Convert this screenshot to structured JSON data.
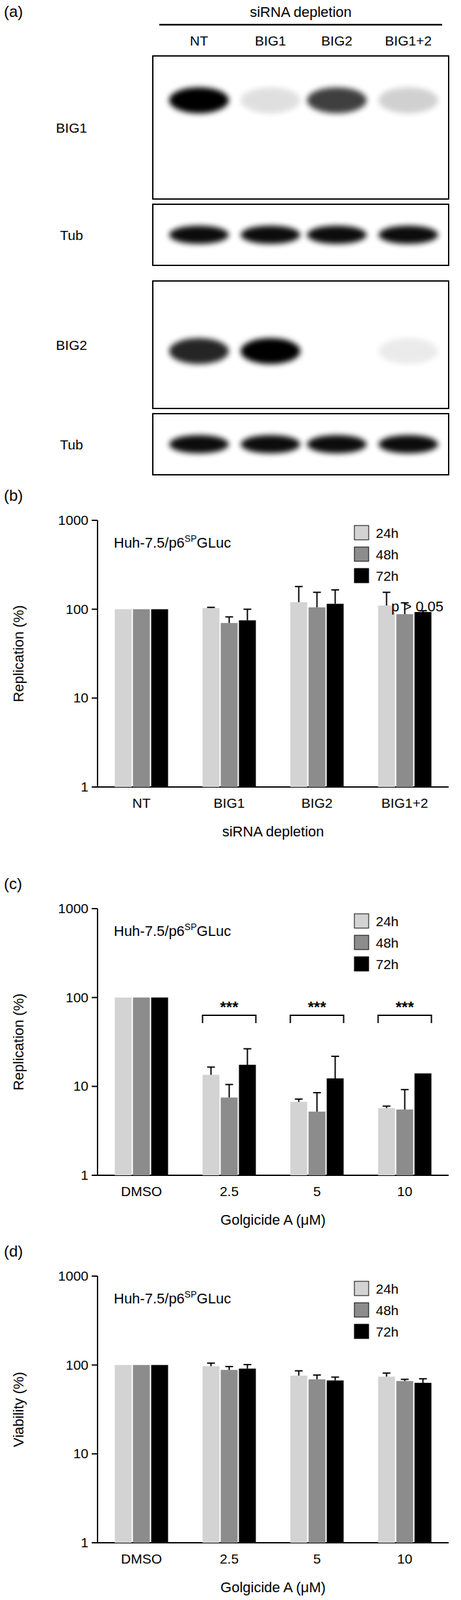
{
  "blot": {
    "panel": "(a)",
    "header": "siRNA depletion",
    "lanes": [
      "NT",
      "BIG1",
      "BIG2",
      "BIG1+2"
    ],
    "rows": [
      "BIG1",
      "Tub",
      "BIG2",
      "Tub"
    ]
  },
  "chart_data": [
    {
      "type": "bar",
      "panel": "(b)",
      "title_parts": [
        "Huh-7.5/p6",
        "SP",
        "GLuc"
      ],
      "annotation": "p > 0.05",
      "xlabel": "siRNA depletion",
      "ylabel": "Replication (%)",
      "categories": [
        "NT",
        "BIG1",
        "BIG2",
        "BIG1+2"
      ],
      "series": [
        {
          "name": "24h",
          "color": "#d3d3d3",
          "values": [
            100,
            103,
            120,
            110
          ],
          "errors": [
            0,
            2,
            60,
            45
          ]
        },
        {
          "name": "48h",
          "color": "#8c8c8c",
          "values": [
            100,
            70,
            105,
            88
          ],
          "errors": [
            0,
            12,
            50,
            30
          ]
        },
        {
          "name": "72h",
          "color": "#000000",
          "values": [
            100,
            75,
            115,
            93
          ],
          "errors": [
            0,
            25,
            50,
            3
          ]
        }
      ],
      "ylim": [
        1,
        1000
      ],
      "yticks": [
        1,
        10,
        100,
        1000
      ],
      "log": "y",
      "legend": "top-right"
    },
    {
      "type": "bar",
      "panel": "(c)",
      "title_parts": [
        "Huh-7.5/p6",
        "SP",
        "GLuc"
      ],
      "xlabel": "Golgicide A (μM)",
      "ylabel": "Replication (%)",
      "categories": [
        "DMSO",
        "2.5",
        "5",
        "10"
      ],
      "significance": [
        null,
        "***",
        "***",
        "***"
      ],
      "series": [
        {
          "name": "24h",
          "color": "#d3d3d3",
          "values": [
            100,
            13.5,
            6.7,
            5.7
          ],
          "errors": [
            0,
            3,
            0.5,
            0.3
          ]
        },
        {
          "name": "48h",
          "color": "#8c8c8c",
          "values": [
            100,
            7.5,
            5.2,
            5.5
          ],
          "errors": [
            0,
            3,
            3.3,
            3.7
          ]
        },
        {
          "name": "72h",
          "color": "#000000",
          "values": [
            100,
            17.5,
            12.3,
            14
          ],
          "errors": [
            0,
            9,
            9.5,
            0
          ]
        }
      ],
      "ylim": [
        1,
        1000
      ],
      "yticks": [
        1,
        10,
        100,
        1000
      ],
      "log": "y",
      "legend": "top-right"
    },
    {
      "type": "bar",
      "panel": "(d)",
      "title_parts": [
        "Huh-7.5/p6",
        "SP",
        "GLuc"
      ],
      "xlabel": "Golgicide A (μM)",
      "ylabel": "Viability (%)",
      "categories": [
        "DMSO",
        "2.5",
        "5",
        "10"
      ],
      "series": [
        {
          "name": "24h",
          "color": "#d3d3d3",
          "values": [
            100,
            97,
            76,
            74
          ],
          "errors": [
            0,
            8,
            10,
            7
          ]
        },
        {
          "name": "48h",
          "color": "#8c8c8c",
          "values": [
            100,
            88,
            69,
            66
          ],
          "errors": [
            0,
            8,
            8,
            3
          ]
        },
        {
          "name": "72h",
          "color": "#000000",
          "values": [
            100,
            91,
            67,
            63
          ],
          "errors": [
            0,
            10,
            6,
            7
          ]
        }
      ],
      "ylim": [
        1,
        1000
      ],
      "yticks": [
        1,
        10,
        100,
        1000
      ],
      "log": "y",
      "legend": "top-right"
    }
  ]
}
